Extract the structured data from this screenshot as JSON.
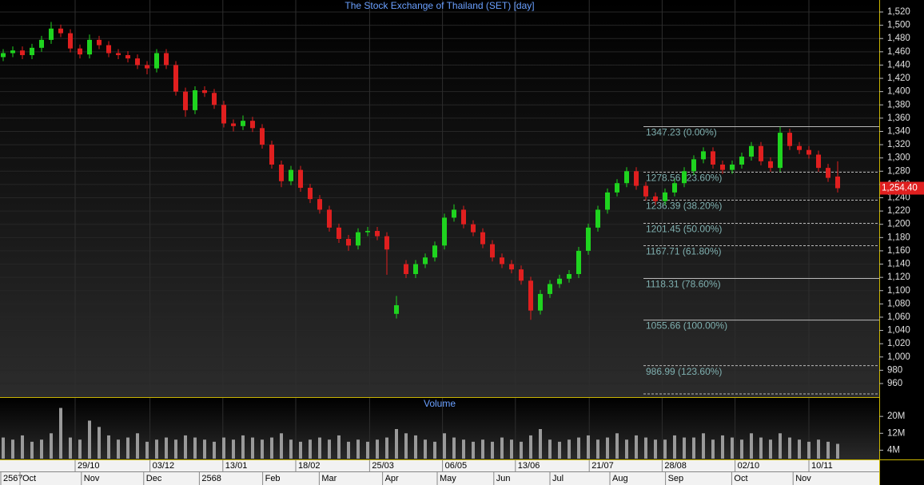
{
  "chart_data": {
    "type": "candlestick",
    "title": "The Stock Exchange of Thailand (SET) [day]",
    "volume_title": "Volume",
    "up_color": "#1fd41f",
    "down_color": "#e01f1f",
    "volume_color": "#9a9a9a",
    "grid": true,
    "open": [
      1452,
      1458,
      1462,
      1455,
      1466,
      1478,
      1495,
      1488,
      1465,
      1456,
      1478,
      1470,
      1458,
      1455,
      1450,
      1440,
      1435,
      1458,
      1440,
      1400,
      1372,
      1402,
      1398,
      1380,
      1352,
      1348,
      1356,
      1345,
      1320,
      1290,
      1265,
      1282,
      1255,
      1238,
      1222,
      1195,
      1178,
      1168,
      1188,
      1190,
      1182,
      1065,
      1140,
      1125,
      1140,
      1150,
      1168,
      1210,
      1222,
      1200,
      1188,
      1170,
      1150,
      1140,
      1132,
      1115,
      1070,
      1095,
      1110,
      1118,
      1125,
      1160,
      1195,
      1222,
      1248,
      1262,
      1280,
      1258,
      1242,
      1235,
      1248,
      1262,
      1280,
      1298,
      1310,
      1290,
      1282,
      1290,
      1302,
      1318,
      1295,
      1285,
      1338,
      1318,
      1312,
      1305,
      1285,
      1272
    ],
    "high": [
      1464,
      1468,
      1468,
      1472,
      1484,
      1505,
      1501,
      1494,
      1471,
      1486,
      1484,
      1476,
      1464,
      1461,
      1456,
      1446,
      1464,
      1464,
      1446,
      1406,
      1408,
      1408,
      1404,
      1386,
      1358,
      1364,
      1362,
      1351,
      1326,
      1296,
      1288,
      1288,
      1261,
      1244,
      1228,
      1201,
      1184,
      1194,
      1196,
      1196,
      1188,
      1092,
      1146,
      1146,
      1156,
      1174,
      1216,
      1230,
      1228,
      1206,
      1194,
      1176,
      1156,
      1146,
      1138,
      1121,
      1101,
      1116,
      1124,
      1131,
      1166,
      1201,
      1228,
      1254,
      1268,
      1286,
      1286,
      1264,
      1248,
      1254,
      1268,
      1286,
      1304,
      1316,
      1316,
      1296,
      1296,
      1308,
      1324,
      1324,
      1301,
      1347,
      1344,
      1324,
      1318,
      1311,
      1291,
      1295
    ],
    "low": [
      1446,
      1452,
      1449,
      1449,
      1460,
      1472,
      1482,
      1459,
      1450,
      1450,
      1464,
      1452,
      1449,
      1444,
      1434,
      1426,
      1429,
      1434,
      1394,
      1362,
      1366,
      1392,
      1374,
      1346,
      1340,
      1342,
      1339,
      1314,
      1284,
      1256,
      1259,
      1249,
      1232,
      1216,
      1189,
      1172,
      1160,
      1162,
      1182,
      1176,
      1124,
      1058,
      1119,
      1119,
      1134,
      1144,
      1162,
      1204,
      1194,
      1182,
      1164,
      1144,
      1134,
      1126,
      1109,
      1056,
      1064,
      1089,
      1104,
      1112,
      1119,
      1154,
      1189,
      1216,
      1242,
      1256,
      1252,
      1236,
      1229,
      1229,
      1242,
      1256,
      1274,
      1292,
      1284,
      1276,
      1276,
      1284,
      1296,
      1289,
      1279,
      1279,
      1312,
      1306,
      1299,
      1279,
      1264,
      1248
    ],
    "close": [
      1458,
      1462,
      1455,
      1466,
      1478,
      1495,
      1488,
      1465,
      1456,
      1478,
      1470,
      1458,
      1455,
      1450,
      1440,
      1435,
      1458,
      1440,
      1400,
      1372,
      1402,
      1398,
      1380,
      1352,
      1348,
      1356,
      1345,
      1320,
      1290,
      1265,
      1282,
      1255,
      1238,
      1222,
      1195,
      1178,
      1168,
      1188,
      1190,
      1182,
      1162,
      1078,
      1125,
      1140,
      1150,
      1168,
      1210,
      1222,
      1200,
      1188,
      1170,
      1150,
      1140,
      1132,
      1115,
      1070,
      1095,
      1110,
      1118,
      1125,
      1160,
      1195,
      1222,
      1248,
      1262,
      1280,
      1258,
      1242,
      1235,
      1248,
      1262,
      1280,
      1298,
      1310,
      1290,
      1282,
      1290,
      1302,
      1318,
      1295,
      1285,
      1338,
      1318,
      1312,
      1305,
      1285,
      1270,
      1254.4
    ],
    "volume": [
      10,
      9,
      11,
      8,
      9,
      12,
      24,
      10,
      9,
      18,
      15,
      11,
      9,
      10,
      12,
      8,
      9,
      10,
      9,
      11,
      10,
      9,
      8,
      10,
      9,
      11,
      10,
      9,
      10,
      12,
      9,
      8,
      9,
      10,
      9,
      11,
      8,
      9,
      8,
      9,
      10,
      14,
      12,
      11,
      9,
      8,
      12,
      10,
      9,
      8,
      9,
      8,
      10,
      9,
      8,
      11,
      14,
      9,
      8,
      9,
      10,
      11,
      9,
      10,
      12,
      9,
      11,
      10,
      9,
      9,
      11,
      10,
      10,
      12,
      9,
      11,
      10,
      9,
      12,
      10,
      9,
      12,
      10,
      9,
      8,
      9,
      8,
      7
    ],
    "ylim": [
      960,
      1520
    ],
    "yticks": [
      {
        "value": 1520,
        "label": "1,520"
      },
      {
        "value": 1500,
        "label": "1,500"
      },
      {
        "value": 1480,
        "label": "1,480"
      },
      {
        "value": 1460,
        "label": "1,460"
      },
      {
        "value": 1440,
        "label": "1,440"
      },
      {
        "value": 1420,
        "label": "1,420"
      },
      {
        "value": 1400,
        "label": "1,400"
      },
      {
        "value": 1380,
        "label": "1,380"
      },
      {
        "value": 1360,
        "label": "1,360"
      },
      {
        "value": 1340,
        "label": "1,340"
      },
      {
        "value": 1320,
        "label": "1,320"
      },
      {
        "value": 1300,
        "label": "1,300"
      },
      {
        "value": 1280,
        "label": "1,280"
      },
      {
        "value": 1260,
        "label": "1,260"
      },
      {
        "value": 1240,
        "label": "1,240"
      },
      {
        "value": 1220,
        "label": "1,220"
      },
      {
        "value": 1200,
        "label": "1,200"
      },
      {
        "value": 1180,
        "label": "1,180"
      },
      {
        "value": 1160,
        "label": "1,160"
      },
      {
        "value": 1140,
        "label": "1,140"
      },
      {
        "value": 1120,
        "label": "1,120"
      },
      {
        "value": 1100,
        "label": "1,100"
      },
      {
        "value": 1080,
        "label": "1,080"
      },
      {
        "value": 1060,
        "label": "1,060"
      },
      {
        "value": 1040,
        "label": "1,040"
      },
      {
        "value": 1020,
        "label": "1,020"
      },
      {
        "value": 1000,
        "label": "1,000"
      },
      980,
      960
    ],
    "volume_ylim": [
      0,
      28
    ],
    "volume_yticks": [
      {
        "value": 20,
        "label": "20M"
      },
      {
        "value": 12,
        "label": "12M"
      },
      {
        "value": 4,
        "label": "4M"
      }
    ],
    "last_price": {
      "value": 1254.4,
      "label": "1,254.40"
    },
    "fib_levels": [
      {
        "value": 1347.23,
        "label": "1347.23 (0.00%)",
        "style": "solid"
      },
      {
        "value": 1278.56,
        "label": "1278.56 (23.60%)",
        "style": "dashed"
      },
      {
        "value": 1236.39,
        "label": "1236.39 (38.20%)",
        "style": "dashed"
      },
      {
        "value": 1201.45,
        "label": "1201.45 (50.00%)",
        "style": "dashed"
      },
      {
        "value": 1167.71,
        "label": "1167.71 (61.80%)",
        "style": "dashed"
      },
      {
        "value": 1118.31,
        "label": "1118.31 (78.60%)",
        "style": "solid"
      },
      {
        "value": 1055.66,
        "label": "1055.66 (100.00%)",
        "style": "solid"
      },
      {
        "value": 986.99,
        "label": "986.99 (123.60%)",
        "style": "dashed"
      },
      {
        "value": 944.28,
        "style": "dashed"
      }
    ],
    "xticks": [
      {
        "value": 7.5,
        "label": "29/10"
      },
      {
        "value": 15.3,
        "label": "03/12"
      },
      {
        "value": 22.9,
        "label": "13/01"
      },
      {
        "value": 30.5,
        "label": "18/02"
      },
      {
        "value": 38.2,
        "label": "25/03"
      },
      {
        "value": 45.8,
        "label": "06/05"
      },
      {
        "value": 53.4,
        "label": "13/06"
      },
      {
        "value": 61.1,
        "label": "21/07"
      },
      {
        "value": 68.7,
        "label": "28/08"
      },
      {
        "value": 76.3,
        "label": "02/10"
      },
      {
        "value": 84,
        "label": "10/11"
      }
    ],
    "month_ticks": [
      {
        "value": 0,
        "label": "2567"
      },
      {
        "value": 2,
        "label": "Oct"
      },
      {
        "value": 8.4,
        "label": "Nov"
      },
      {
        "value": 14.9,
        "label": "Dec"
      },
      {
        "value": 20.7,
        "label": "2568"
      },
      {
        "value": 27.3,
        "label": "Feb"
      },
      {
        "value": 33.2,
        "label": "Mar"
      },
      {
        "value": 39.8,
        "label": "Apr"
      },
      {
        "value": 45.5,
        "label": "May"
      },
      {
        "value": 51.4,
        "label": "Jun"
      },
      {
        "value": 57.25,
        "label": "Jul"
      },
      {
        "value": 63.5,
        "label": "Aug"
      },
      {
        "value": 69.3,
        "label": "Sep"
      },
      {
        "value": 76.2,
        "label": "Oct"
      },
      {
        "value": 82.6,
        "label": "Nov"
      }
    ]
  }
}
